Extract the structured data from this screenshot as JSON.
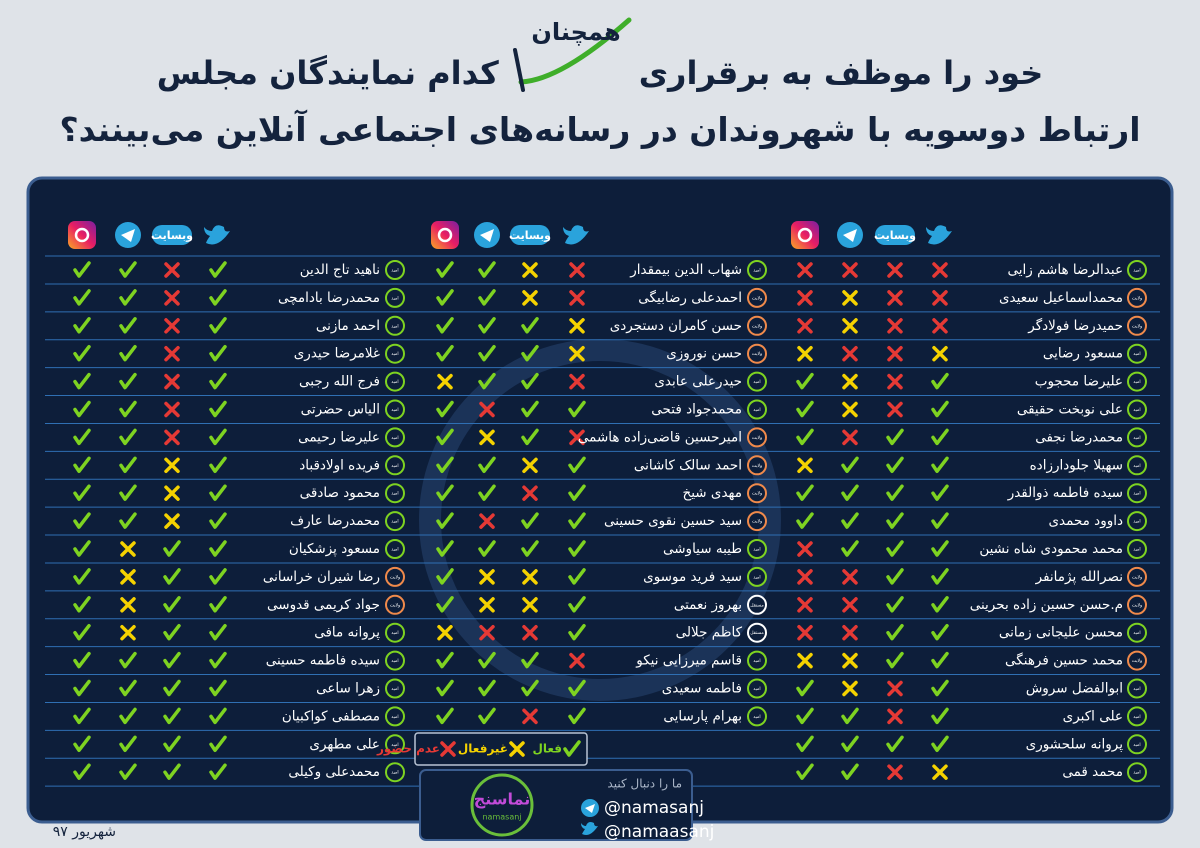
{
  "header": {
    "title_part1": "کدام نمایندگان مجلس",
    "highlight": "همچنان",
    "title_part2": "خود را موظف به برقراری",
    "title_line2": "ارتباط دوسویه با شهروندان در رسانه‌های اجتماعی آنلاین می‌بینند؟"
  },
  "column_labels": {
    "website": "وبسایت"
  },
  "tables": [
    {
      "rows": [
        {
          "name": "عبدالرضا هاشم زایی",
          "badge": "امید",
          "twitter": "absent",
          "website": "absent",
          "telegram": "absent",
          "instagram": "absent"
        },
        {
          "name": "محمداسماعیل سعیدی",
          "badge": "ولایت",
          "twitter": "absent",
          "website": "absent",
          "telegram": "inactive",
          "instagram": "absent"
        },
        {
          "name": "حمیدرضا فولادگر",
          "badge": "ولایت",
          "twitter": "absent",
          "website": "absent",
          "telegram": "inactive",
          "instagram": "absent"
        },
        {
          "name": "مسعود رضایی",
          "badge": "امید",
          "twitter": "inactive",
          "website": "absent",
          "telegram": "absent",
          "instagram": "inactive"
        },
        {
          "name": "علیرضا محجوب",
          "badge": "امید",
          "twitter": "active",
          "website": "absent",
          "telegram": "inactive",
          "instagram": "active"
        },
        {
          "name": "علی نوبخت حقیقی",
          "badge": "امید",
          "twitter": "active",
          "website": "absent",
          "telegram": "inactive",
          "instagram": "active"
        },
        {
          "name": "محمدرضا نجفی",
          "badge": "امید",
          "twitter": "active",
          "website": "active",
          "telegram": "absent",
          "instagram": "active"
        },
        {
          "name": "سهیلا جلودارزاده",
          "badge": "امید",
          "twitter": "active",
          "website": "active",
          "telegram": "active",
          "instagram": "inactive"
        },
        {
          "name": "سیده فاطمه ذوالقدر",
          "badge": "امید",
          "twitter": "active",
          "website": "active",
          "telegram": "active",
          "instagram": "active"
        },
        {
          "name": "داوود محمدی",
          "badge": "امید",
          "twitter": "active",
          "website": "active",
          "telegram": "active",
          "instagram": "active"
        },
        {
          "name": "محمد محمودی شاه نشین",
          "badge": "امید",
          "twitter": "active",
          "website": "active",
          "telegram": "active",
          "instagram": "absent"
        },
        {
          "name": "نصرالله پژمانفر",
          "badge": "ولایت",
          "twitter": "active",
          "website": "active",
          "telegram": "absent",
          "instagram": "absent"
        },
        {
          "name": "م.حسن حسین زاده بحرینی",
          "badge": "ولایت",
          "twitter": "active",
          "website": "active",
          "telegram": "absent",
          "instagram": "absent"
        },
        {
          "name": "محسن علیجانی زمانی",
          "badge": "امید",
          "twitter": "active",
          "website": "active",
          "telegram": "absent",
          "instagram": "absent"
        },
        {
          "name": "محمد حسین فرهنگی",
          "badge": "ولایت",
          "twitter": "active",
          "website": "active",
          "telegram": "inactive",
          "instagram": "inactive"
        },
        {
          "name": "ابوالفضل سروش",
          "badge": "امید",
          "twitter": "active",
          "website": "absent",
          "telegram": "inactive",
          "instagram": "active"
        },
        {
          "name": "علی اکبری",
          "badge": "امید",
          "twitter": "active",
          "website": "absent",
          "telegram": "active",
          "instagram": "active"
        },
        {
          "name": "پروانه سلحشوری",
          "badge": "امید",
          "twitter": "active",
          "website": "active",
          "telegram": "active",
          "instagram": "active"
        },
        {
          "name": "محمد قمی",
          "badge": "امید",
          "twitter": "inactive",
          "website": "absent",
          "telegram": "active",
          "instagram": "active"
        }
      ]
    },
    {
      "rows": [
        {
          "name": "شهاب الدین بیمقدار",
          "badge": "امید",
          "twitter": "absent",
          "website": "inactive",
          "telegram": "active",
          "instagram": "active"
        },
        {
          "name": "احمدعلی رضابیگی",
          "badge": "ولایت",
          "twitter": "absent",
          "website": "inactive",
          "telegram": "active",
          "instagram": "active"
        },
        {
          "name": "حسن کامران دستجردی",
          "badge": "ولایت",
          "twitter": "inactive",
          "website": "active",
          "telegram": "active",
          "instagram": "active"
        },
        {
          "name": "حسن نوروزی",
          "badge": "ولایت",
          "twitter": "inactive",
          "website": "active",
          "telegram": "active",
          "instagram": "active"
        },
        {
          "name": "حیدرعلی عابدی",
          "badge": "امید",
          "twitter": "absent",
          "website": "active",
          "telegram": "active",
          "instagram": "inactive"
        },
        {
          "name": "محمدجواد فتحی",
          "badge": "امید",
          "twitter": "active",
          "website": "active",
          "telegram": "absent",
          "instagram": "active"
        },
        {
          "name": "امیرحسین قاضی‌زاده هاشمی",
          "badge": "ولایت",
          "twitter": "absent",
          "website": "active",
          "telegram": "inactive",
          "instagram": "active"
        },
        {
          "name": "احمد سالک کاشانی",
          "badge": "ولایت",
          "twitter": "active",
          "website": "inactive",
          "telegram": "active",
          "instagram": "active"
        },
        {
          "name": "مهدی شیخ",
          "badge": "ولایت",
          "twitter": "active",
          "website": "absent",
          "telegram": "active",
          "instagram": "active"
        },
        {
          "name": "سید حسین نقوی حسینی",
          "badge": "ولایت",
          "twitter": "active",
          "website": "active",
          "telegram": "absent",
          "instagram": "active"
        },
        {
          "name": "طیبه سیاوشی",
          "badge": "امید",
          "twitter": "active",
          "website": "active",
          "telegram": "active",
          "instagram": "active"
        },
        {
          "name": "سید فرید موسوی",
          "badge": "امید",
          "twitter": "active",
          "website": "inactive",
          "telegram": "inactive",
          "instagram": "active"
        },
        {
          "name": "بهروز نعمتی",
          "badge": "مستقل",
          "twitter": "active",
          "website": "inactive",
          "telegram": "inactive",
          "instagram": "active"
        },
        {
          "name": "کاظم جلالی",
          "badge": "مستقل",
          "twitter": "active",
          "website": "absent",
          "telegram": "absent",
          "instagram": "inactive"
        },
        {
          "name": "قاسم میرزایی نیکو",
          "badge": "امید",
          "twitter": "absent",
          "website": "active",
          "telegram": "active",
          "instagram": "active"
        },
        {
          "name": "فاطمه سعیدی",
          "badge": "امید",
          "twitter": "active",
          "website": "active",
          "telegram": "active",
          "instagram": "active"
        },
        {
          "name": "بهرام پارسایی",
          "badge": "امید",
          "twitter": "active",
          "website": "absent",
          "telegram": "active",
          "instagram": "active"
        }
      ]
    },
    {
      "rows": [
        {
          "name": "ناهید تاج الدین",
          "badge": "امید",
          "twitter": "active",
          "website": "absent",
          "telegram": "active",
          "instagram": "active"
        },
        {
          "name": "محمدرضا بادامچی",
          "badge": "امید",
          "twitter": "active",
          "website": "absent",
          "telegram": "active",
          "instagram": "active"
        },
        {
          "name": "احمد مازنی",
          "badge": "امید",
          "twitter": "active",
          "website": "absent",
          "telegram": "active",
          "instagram": "active"
        },
        {
          "name": "غلامرضا حیدری",
          "badge": "امید",
          "twitter": "active",
          "website": "absent",
          "telegram": "active",
          "instagram": "active"
        },
        {
          "name": "فرج الله رجبی",
          "badge": "امید",
          "twitter": "active",
          "website": "absent",
          "telegram": "active",
          "instagram": "active"
        },
        {
          "name": "الیاس حضرتی",
          "badge": "امید",
          "twitter": "active",
          "website": "absent",
          "telegram": "active",
          "instagram": "active"
        },
        {
          "name": "علیرضا رحیمی",
          "badge": "امید",
          "twitter": "active",
          "website": "absent",
          "telegram": "active",
          "instagram": "active"
        },
        {
          "name": "فریده اولادقباد",
          "badge": "امید",
          "twitter": "active",
          "website": "inactive",
          "telegram": "active",
          "instagram": "active"
        },
        {
          "name": "محمود صادقی",
          "badge": "امید",
          "twitter": "active",
          "website": "inactive",
          "telegram": "active",
          "instagram": "active"
        },
        {
          "name": "محمدرضا عارف",
          "badge": "امید",
          "twitter": "active",
          "website": "inactive",
          "telegram": "active",
          "instagram": "active"
        },
        {
          "name": "مسعود پزشکیان",
          "badge": "امید",
          "twitter": "active",
          "website": "active",
          "telegram": "inactive",
          "instagram": "active"
        },
        {
          "name": "رضا شیران خراسانی",
          "badge": "ولایت",
          "twitter": "active",
          "website": "active",
          "telegram": "inactive",
          "instagram": "active"
        },
        {
          "name": "جواد کریمی قدوسی",
          "badge": "ولایت",
          "twitter": "active",
          "website": "active",
          "telegram": "inactive",
          "instagram": "active"
        },
        {
          "name": "پروانه مافی",
          "badge": "امید",
          "twitter": "active",
          "website": "active",
          "telegram": "inactive",
          "instagram": "active"
        },
        {
          "name": "سیده فاطمه حسینی",
          "badge": "امید",
          "twitter": "active",
          "website": "active",
          "telegram": "active",
          "instagram": "active"
        },
        {
          "name": "زهرا ساعی",
          "badge": "امید",
          "twitter": "active",
          "website": "active",
          "telegram": "active",
          "instagram": "active"
        },
        {
          "name": "مصطفی کواکبیان",
          "badge": "امید",
          "twitter": "active",
          "website": "active",
          "telegram": "active",
          "instagram": "active"
        },
        {
          "name": "علی مطهری",
          "badge": "امید",
          "twitter": "active",
          "website": "active",
          "telegram": "active",
          "instagram": "active"
        },
        {
          "name": "محمدعلی وکیلی",
          "badge": "امید",
          "twitter": "active",
          "website": "active",
          "telegram": "active",
          "instagram": "active"
        }
      ]
    }
  ],
  "legend": {
    "active": "فعال",
    "inactive": "غیرفعال",
    "absent": "عدم حضور"
  },
  "follow": {
    "prompt": "ما را دنبال کنید",
    "telegram": "@namasanj",
    "twitter": "@namaasanj"
  },
  "logo": {
    "name": "نماسنج",
    "latin": "namasanj"
  },
  "date": "شهریور ۹۷"
}
